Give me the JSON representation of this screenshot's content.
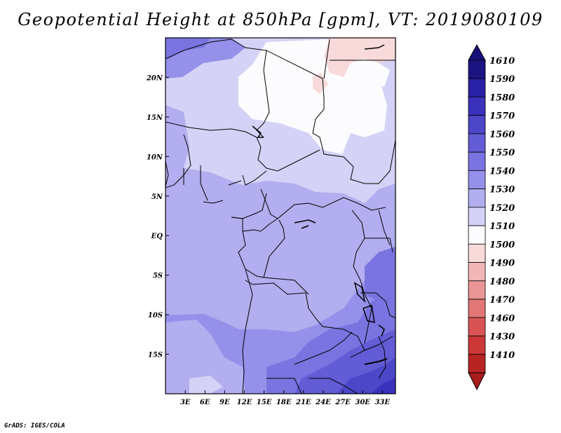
{
  "title": "Geopotential Height at 850hPa [gpm], VT: 2019080109",
  "footer": "GrADS: IGES/COLA",
  "map": {
    "lon_range": [
      0,
      35
    ],
    "lat_range": [
      -20,
      25
    ],
    "lat_ticks": [
      {
        "value": 20,
        "label": "20N"
      },
      {
        "value": 15,
        "label": "15N"
      },
      {
        "value": 10,
        "label": "10N"
      },
      {
        "value": 5,
        "label": "5N"
      },
      {
        "value": 0,
        "label": "EQ"
      },
      {
        "value": -5,
        "label": "5S"
      },
      {
        "value": -10,
        "label": "10S"
      },
      {
        "value": -15,
        "label": "15S"
      }
    ],
    "lon_ticks": [
      {
        "value": 3,
        "label": "3E"
      },
      {
        "value": 6,
        "label": "6E"
      },
      {
        "value": 9,
        "label": "9E"
      },
      {
        "value": 12,
        "label": "12E"
      },
      {
        "value": 15,
        "label": "15E"
      },
      {
        "value": 18,
        "label": "18E"
      },
      {
        "value": 21,
        "label": "21E"
      },
      {
        "value": 24,
        "label": "24E"
      },
      {
        "value": 27,
        "label": "27E"
      },
      {
        "value": 30,
        "label": "30E"
      },
      {
        "value": 33,
        "label": "33E"
      }
    ]
  },
  "colorbar": {
    "levels": [
      {
        "label": "1610",
        "color": "#1c1480"
      },
      {
        "label": "1590",
        "color": "#2a22a6"
      },
      {
        "label": "1580",
        "color": "#3a32bc"
      },
      {
        "label": "1570",
        "color": "#4c46c8"
      },
      {
        "label": "1560",
        "color": "#625cd6"
      },
      {
        "label": "1550",
        "color": "#7a74e0"
      },
      {
        "label": "1540",
        "color": "#9590ea"
      },
      {
        "label": "1530",
        "color": "#b2aeef"
      },
      {
        "label": "1520",
        "color": "#d4d2f6"
      },
      {
        "label": "1510",
        "color": "#fcfcff"
      },
      {
        "label": "1500",
        "color": "#f8dada"
      },
      {
        "label": "1490",
        "color": "#f2b6b6"
      },
      {
        "label": "1480",
        "color": "#ea9696"
      },
      {
        "label": "1470",
        "color": "#e07676"
      },
      {
        "label": "1460",
        "color": "#d85454"
      },
      {
        "label": "1430",
        "color": "#cc3838"
      },
      {
        "label": "1410",
        "color": "#b82424"
      }
    ],
    "top_color": "#16107a",
    "bottom_color": "#a81c1c"
  }
}
